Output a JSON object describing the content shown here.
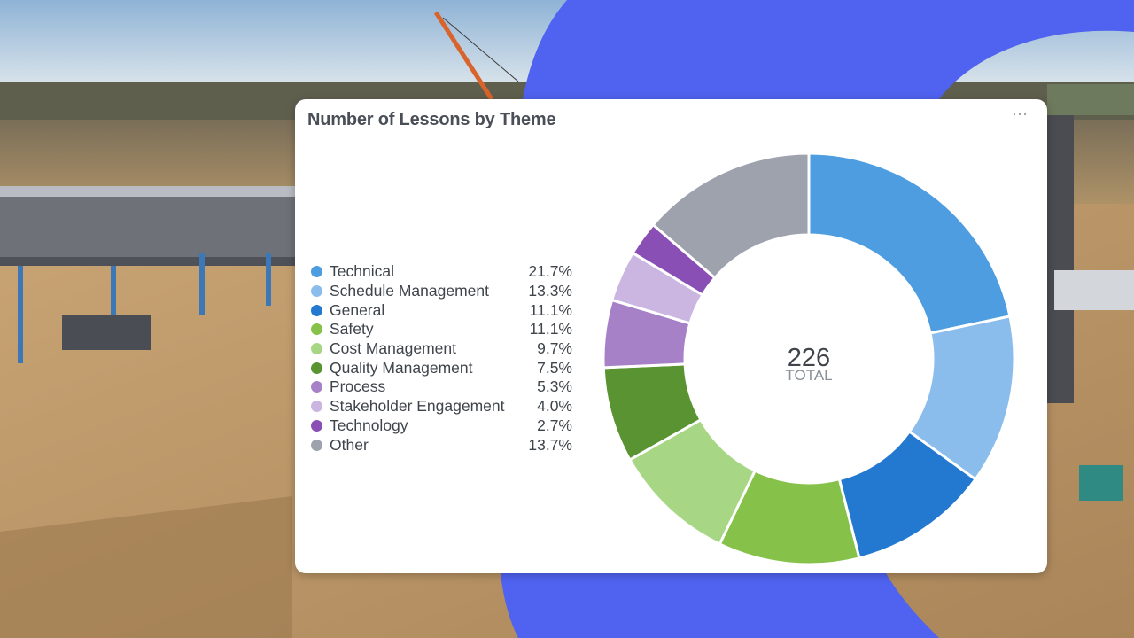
{
  "chart_data": {
    "type": "pie",
    "title": "Number of Lessons by Theme",
    "center_value": "226",
    "center_label": "TOTAL",
    "legend_position": "left",
    "slices": [
      {
        "label": "Technical",
        "value": 21.7,
        "display": "21.7%",
        "color": "#4d9de0"
      },
      {
        "label": "Schedule Management",
        "value": 13.3,
        "display": "13.3%",
        "color": "#8bbdec"
      },
      {
        "label": "General",
        "value": 11.1,
        "display": "11.1%",
        "color": "#2379d0"
      },
      {
        "label": "Safety",
        "value": 11.1,
        "display": "11.1%",
        "color": "#86c24a"
      },
      {
        "label": "Cost Management",
        "value": 9.7,
        "display": "9.7%",
        "color": "#a7d784"
      },
      {
        "label": "Quality Management",
        "value": 7.5,
        "display": "7.5%",
        "color": "#5a9432"
      },
      {
        "label": "Process",
        "value": 5.3,
        "display": "5.3%",
        "color": "#a781c7"
      },
      {
        "label": "Stakeholder Engagement",
        "value": 4.0,
        "display": "4.0%",
        "color": "#cab6e0"
      },
      {
        "label": "Technology",
        "value": 2.7,
        "display": "2.7%",
        "color": "#8a4fb4"
      },
      {
        "label": "Other",
        "value": 13.7,
        "display": "13.7%",
        "color": "#9da2ad"
      }
    ]
  },
  "colors": {
    "accent_blue": "#4f62f0",
    "sky": "#a9c6de",
    "ground": "#c9a877"
  }
}
